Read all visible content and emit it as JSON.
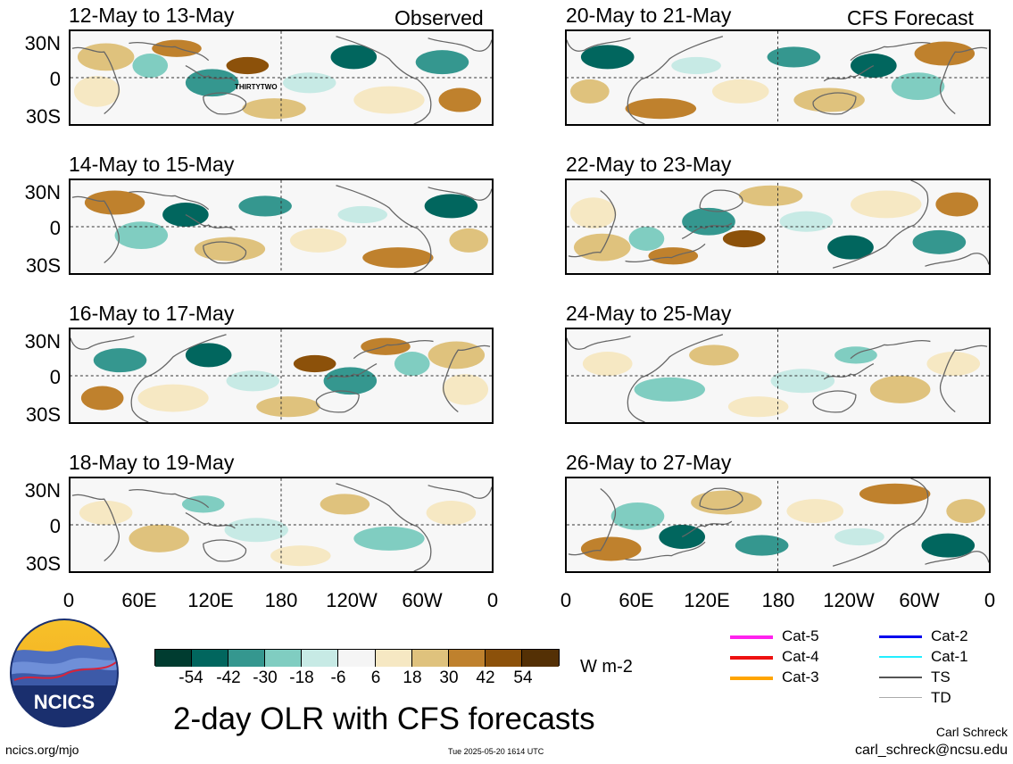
{
  "observed_label": "Observed",
  "forecast_label": "CFS Forecast",
  "observed_panels": [
    {
      "title": "12-May to 13-May",
      "storm_label": "THIRTYTWO"
    },
    {
      "title": "14-May to 15-May"
    },
    {
      "title": "16-May to 17-May"
    },
    {
      "title": "18-May to 19-May"
    }
  ],
  "forecast_panels": [
    {
      "title": "20-May to 21-May"
    },
    {
      "title": "22-May to 23-May"
    },
    {
      "title": "24-May to 25-May"
    },
    {
      "title": "26-May to 27-May"
    }
  ],
  "y_ticks": [
    "30N",
    "0",
    "30S"
  ],
  "x_ticks": [
    "0",
    "60E",
    "120E",
    "180",
    "120W",
    "60W",
    "0"
  ],
  "colorbar": {
    "labels": [
      "-54",
      "-42",
      "-30",
      "-18",
      "-6",
      "6",
      "18",
      "30",
      "42",
      "54"
    ],
    "colors": [
      "#003c30",
      "#01665e",
      "#35978f",
      "#80cdc1",
      "#c7eae5",
      "#f5f5f5",
      "#f6e8c3",
      "#dfc27d",
      "#bf812d",
      "#8c510a",
      "#543005"
    ],
    "unit": "W m-2"
  },
  "legend": [
    {
      "label": "Cat-5",
      "color": "#ff22ee"
    },
    {
      "label": "Cat-4",
      "color": "#ee1111"
    },
    {
      "label": "Cat-3",
      "color": "#ffa500"
    },
    {
      "label": "Cat-2",
      "color": "#0000ee"
    },
    {
      "label": "Cat-1",
      "color": "#22eeff"
    },
    {
      "label": "TS",
      "color": "#555555"
    },
    {
      "label": "TD",
      "color": "#aaaaaa"
    }
  ],
  "logo_text": "NCICS",
  "main_title": "2-day OLR with CFS forecasts",
  "footer_left": "ncics.org/mjo",
  "footer_center": "Tue 2025-05-20 1614 UTC",
  "author_name": "Carl Schreck",
  "author_email": "carl_schreck@ncsu.edu"
}
